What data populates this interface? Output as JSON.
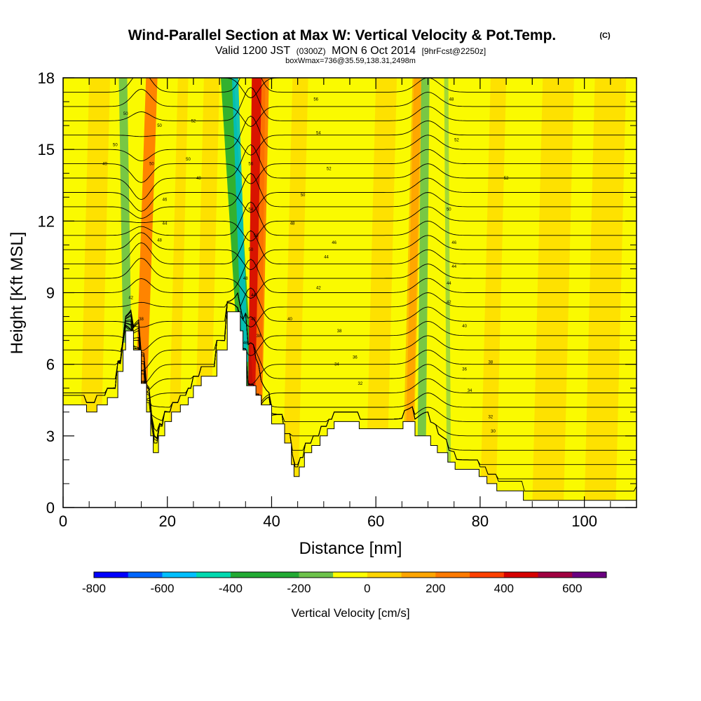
{
  "title": {
    "main": "Wind-Parallel Section at Max W: Vertical Velocity & Pot.Temp.",
    "copyright": "(C)",
    "valid_prefix": "Valid 1200 JST",
    "valid_utc": "(0300Z)",
    "valid_date": "MON 6 Oct 2014",
    "forecast": "[9hrFcst@2250z]",
    "box_info": "boxWmax=736@35.59,138.31,2498m"
  },
  "chart_data": {
    "type": "heatmap",
    "xlabel": "Distance [nm]",
    "ylabel": "Height [Kft MSL]",
    "xlim": [
      0,
      110
    ],
    "ylim": [
      0,
      18
    ],
    "x_ticks": [
      "0",
      "20",
      "40",
      "60",
      "80",
      "100"
    ],
    "y_ticks": [
      "0",
      "3",
      "6",
      "9",
      "12",
      "15",
      "18"
    ],
    "x_tick_values": [
      0,
      20,
      40,
      60,
      80,
      100
    ],
    "y_tick_values": [
      0,
      3,
      6,
      9,
      12,
      15,
      18
    ],
    "terrain": [
      [
        0,
        4.3
      ],
      [
        4.5,
        4.3
      ],
      [
        4.5,
        4.0
      ],
      [
        6.5,
        4.0
      ],
      [
        6.5,
        4.3
      ],
      [
        8.5,
        4.3
      ],
      [
        8.5,
        4.6
      ],
      [
        10.5,
        4.6
      ],
      [
        10.5,
        5.7
      ],
      [
        11.5,
        5.7
      ],
      [
        11.5,
        6.6
      ],
      [
        12,
        6.6
      ],
      [
        12,
        7.4
      ],
      [
        13.5,
        7.4
      ],
      [
        13.5,
        6.6
      ],
      [
        15,
        6.6
      ],
      [
        15,
        5.2
      ],
      [
        16,
        5.2
      ],
      [
        16,
        4.0
      ],
      [
        16.8,
        4.0
      ],
      [
        16.8,
        3.0
      ],
      [
        17.3,
        3.0
      ],
      [
        17.3,
        2.3
      ],
      [
        18.3,
        2.3
      ],
      [
        18.3,
        3.0
      ],
      [
        19.5,
        3.0
      ],
      [
        19.5,
        3.6
      ],
      [
        20.8,
        3.6
      ],
      [
        20.8,
        4.0
      ],
      [
        22.5,
        4.0
      ],
      [
        22.5,
        4.3
      ],
      [
        24,
        4.3
      ],
      [
        24,
        4.6
      ],
      [
        25,
        4.6
      ],
      [
        25,
        5.1
      ],
      [
        26.5,
        5.1
      ],
      [
        26.5,
        5.5
      ],
      [
        29.5,
        5.5
      ],
      [
        29.5,
        6.6
      ],
      [
        31.5,
        6.6
      ],
      [
        31.5,
        8.2
      ],
      [
        34,
        8.2
      ],
      [
        34,
        7.4
      ],
      [
        34.5,
        7.4
      ],
      [
        34.5,
        6.6
      ],
      [
        35.2,
        6.6
      ],
      [
        35.2,
        5.1
      ],
      [
        37,
        5.1
      ],
      [
        37,
        4.7
      ],
      [
        38,
        4.7
      ],
      [
        38,
        4.3
      ],
      [
        40,
        4.3
      ],
      [
        40,
        3.5
      ],
      [
        42.5,
        3.5
      ],
      [
        42.5,
        2.7
      ],
      [
        43.8,
        2.7
      ],
      [
        43.8,
        1.8
      ],
      [
        44.3,
        1.8
      ],
      [
        44.3,
        1.3
      ],
      [
        45.3,
        1.3
      ],
      [
        45.3,
        1.7
      ],
      [
        46.3,
        1.7
      ],
      [
        46.3,
        2.3
      ],
      [
        47.7,
        2.3
      ],
      [
        47.7,
        2.6
      ],
      [
        49.3,
        2.6
      ],
      [
        49.3,
        3.0
      ],
      [
        50.7,
        3.0
      ],
      [
        50.7,
        3.3
      ],
      [
        52,
        3.3
      ],
      [
        52,
        3.6
      ],
      [
        56.8,
        3.6
      ],
      [
        56.8,
        3.3
      ],
      [
        65.2,
        3.3
      ],
      [
        65.2,
        3.6
      ],
      [
        67.5,
        3.6
      ],
      [
        67.5,
        3.0
      ],
      [
        70.5,
        3.0
      ],
      [
        70.5,
        2.6
      ],
      [
        71.8,
        2.6
      ],
      [
        71.8,
        2.3
      ],
      [
        73.8,
        2.3
      ],
      [
        73.8,
        1.9
      ],
      [
        75.2,
        1.9
      ],
      [
        75.2,
        1.6
      ],
      [
        79.8,
        1.6
      ],
      [
        79.8,
        1.3
      ],
      [
        81.3,
        1.3
      ],
      [
        81.3,
        1.0
      ],
      [
        83.2,
        1.0
      ],
      [
        83.2,
        0.7
      ],
      [
        88.3,
        0.7
      ],
      [
        88.3,
        0.3
      ],
      [
        97.2,
        0.3
      ],
      [
        97.2,
        0.3
      ],
      [
        110,
        0.3
      ],
      [
        110,
        0.5
      ]
    ],
    "updraft_bands": [
      {
        "x_bottom": 15.0,
        "x_top": 17.0,
        "width": 2.2,
        "velocity": 250,
        "color": "#ff7a00"
      },
      {
        "x_bottom": 36.8,
        "x_top": 37.5,
        "width": 2.6,
        "velocity": 450,
        "color": "#d60000"
      },
      {
        "x_bottom": 37.5,
        "x_top": 38.8,
        "width": 1.4,
        "velocity": 300,
        "color": "#ff7a00"
      },
      {
        "x_bottom": 66.5,
        "x_top": 68.0,
        "width": 1.4,
        "velocity": 150,
        "color": "#ffa500"
      }
    ],
    "downdraft_bands": [
      {
        "x_bottom": 12.3,
        "x_top": 11.5,
        "width": 1.6,
        "velocity": -200,
        "color": "#6cc24a"
      },
      {
        "x_bottom": 35.3,
        "x_top": 31.5,
        "width": 2.5,
        "velocity": -300,
        "color": "#22aa33"
      },
      {
        "x_bottom": 34.9,
        "x_top": 33.0,
        "width": 1.2,
        "velocity": -500,
        "color": "#00bfbf"
      },
      {
        "x_bottom": 68.8,
        "x_top": 69.5,
        "width": 1.6,
        "velocity": -150,
        "color": "#6cc24a"
      },
      {
        "x_bottom": 74.0,
        "x_top": 73.5,
        "width": 0.8,
        "velocity": -100,
        "color": "#9bd63b"
      }
    ],
    "contour_level_count": 30,
    "contour_labels": [
      {
        "text": "50",
        "x": 12,
        "y": 16.5
      },
      {
        "text": "50",
        "x": 10,
        "y": 15.2
      },
      {
        "text": "49",
        "x": 8,
        "y": 14.4
      },
      {
        "text": "52",
        "x": 25,
        "y": 16.2
      },
      {
        "text": "50",
        "x": 18.5,
        "y": 16.0
      },
      {
        "text": "50",
        "x": 24,
        "y": 14.6
      },
      {
        "text": "48",
        "x": 26,
        "y": 13.8
      },
      {
        "text": "46",
        "x": 19.5,
        "y": 12.9
      },
      {
        "text": "44",
        "x": 19.5,
        "y": 11.9
      },
      {
        "text": "48",
        "x": 18.5,
        "y": 11.2
      },
      {
        "text": "50",
        "x": 17,
        "y": 14.4
      },
      {
        "text": "42",
        "x": 13,
        "y": 8.8
      },
      {
        "text": "38",
        "x": 15,
        "y": 7.9
      },
      {
        "text": "56",
        "x": 36,
        "y": 14.4
      },
      {
        "text": "54",
        "x": 36,
        "y": 12.5
      },
      {
        "text": "50",
        "x": 37,
        "y": 11.4
      },
      {
        "text": "50",
        "x": 36,
        "y": 10.8
      },
      {
        "text": "48",
        "x": 35,
        "y": 9.6
      },
      {
        "text": "44",
        "x": 36.5,
        "y": 8.9
      },
      {
        "text": "42",
        "x": 36.5,
        "y": 7.9
      },
      {
        "text": "46",
        "x": 35,
        "y": 6.9
      },
      {
        "text": "38",
        "x": 37.5,
        "y": 7.2
      },
      {
        "text": "56",
        "x": 48.5,
        "y": 17.1
      },
      {
        "text": "54",
        "x": 49,
        "y": 15.7
      },
      {
        "text": "52",
        "x": 51,
        "y": 14.2
      },
      {
        "text": "50",
        "x": 46,
        "y": 13.1
      },
      {
        "text": "48",
        "x": 44,
        "y": 11.9
      },
      {
        "text": "46",
        "x": 52,
        "y": 11.1
      },
      {
        "text": "44",
        "x": 50.5,
        "y": 10.5
      },
      {
        "text": "42",
        "x": 49,
        "y": 9.2
      },
      {
        "text": "40",
        "x": 43.5,
        "y": 7.9
      },
      {
        "text": "38",
        "x": 53,
        "y": 7.4
      },
      {
        "text": "36",
        "x": 56,
        "y": 6.3
      },
      {
        "text": "34",
        "x": 52.5,
        "y": 6.0
      },
      {
        "text": "32",
        "x": 57,
        "y": 5.2
      },
      {
        "text": "48",
        "x": 74.5,
        "y": 17.1
      },
      {
        "text": "52",
        "x": 75.5,
        "y": 15.4
      },
      {
        "text": "52",
        "x": 85,
        "y": 13.8
      },
      {
        "text": "50",
        "x": 74,
        "y": 12.5
      },
      {
        "text": "46",
        "x": 75,
        "y": 11.1
      },
      {
        "text": "44",
        "x": 75,
        "y": 10.1
      },
      {
        "text": "44",
        "x": 74,
        "y": 9.4
      },
      {
        "text": "42",
        "x": 74,
        "y": 8.6
      },
      {
        "text": "40",
        "x": 77,
        "y": 7.6
      },
      {
        "text": "38",
        "x": 82,
        "y": 6.1
      },
      {
        "text": "36",
        "x": 77,
        "y": 5.8
      },
      {
        "text": "34",
        "x": 78,
        "y": 4.9
      },
      {
        "text": "32",
        "x": 82,
        "y": 3.8
      },
      {
        "text": "30",
        "x": 82.5,
        "y": 3.2
      }
    ],
    "colorbar": {
      "title": "Vertical Velocity [cm/s]",
      "min": -800,
      "max": 700,
      "tick_labels": [
        "-800",
        "-600",
        "-400",
        "-200",
        "0",
        "200",
        "400",
        "600"
      ],
      "tick_values": [
        -800,
        -600,
        -400,
        -200,
        0,
        200,
        400,
        600
      ],
      "colors": [
        "#0000ff",
        "#0066ff",
        "#00bfff",
        "#00d9b0",
        "#22aa33",
        "#22aa33",
        "#6cc24a",
        "#ffff00",
        "#ffd500",
        "#ffa500",
        "#ff7a00",
        "#ff4000",
        "#d60000",
        "#a00040",
        "#6a0080"
      ]
    },
    "background_colors": {
      "base": "#fafa00",
      "light_orange": "#ffd800",
      "orange": "#ffb000"
    }
  }
}
